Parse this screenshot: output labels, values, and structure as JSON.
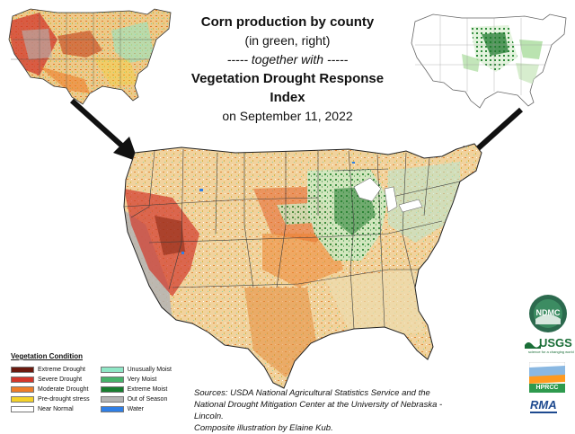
{
  "title": {
    "line1": "Corn production by county",
    "line2": "(in green, right)",
    "line3": "----- together with -----",
    "line4": "Vegetation Drought Response Index",
    "line5": "on September 11, 2022"
  },
  "legend": {
    "title": "Vegetation Condition",
    "left_items": [
      {
        "label": "Extreme Drought",
        "color": "#6b1a0f"
      },
      {
        "label": "Severe Drought",
        "color": "#d2372b"
      },
      {
        "label": "Moderate Drought",
        "color": "#ee7d2a"
      },
      {
        "label": "Pre-drought stress",
        "color": "#f5d22a"
      },
      {
        "label": "Near Normal",
        "color": "#ffffff"
      }
    ],
    "right_items": [
      {
        "label": "Unusually Moist",
        "color": "#8fe7c6"
      },
      {
        "label": "Very Moist",
        "color": "#47b36b"
      },
      {
        "label": "Extreme Moist",
        "color": "#177d2f"
      },
      {
        "label": "Out of Season",
        "color": "#b4b4b4"
      },
      {
        "label": "Water",
        "color": "#2f7fe6"
      }
    ]
  },
  "sources": {
    "line1": "Sources: USDA National Agricultural Statistics Service and the",
    "line2": "National Drought Mitigation Center at the University of Nebraska - Lincoln.",
    "line3": "Composite illustration by Elaine Kub."
  },
  "logos": {
    "ndmc": "NDMC",
    "usgs": "USGS",
    "usgs_tagline": "science for a changing world",
    "hprcc": "HPRCC",
    "rma": "RMA"
  },
  "colors": {
    "arrow": "#111111",
    "drought_dark": "#6b1a0f",
    "drought_red": "#d2372b",
    "drought_orange": "#ee7d2a",
    "drought_yellow": "#f5d22a",
    "moist_green": "#47b36b",
    "corn_green": "#2e8b3a",
    "out_of_season": "#b4b4b4"
  }
}
